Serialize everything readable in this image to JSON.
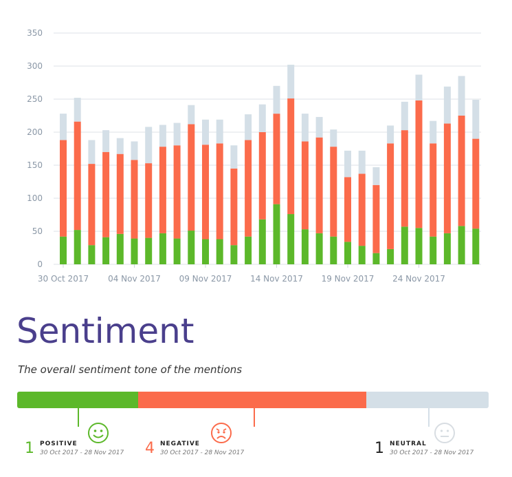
{
  "chart_data": {
    "type": "bar",
    "stacked": true,
    "ylim": [
      0,
      350
    ],
    "yticks": [
      0,
      50,
      100,
      150,
      200,
      250,
      300,
      350
    ],
    "grid": true,
    "xtick_labels": [
      "30 Oct 2017",
      "04 Nov 2017",
      "09 Nov 2017",
      "14 Nov 2017",
      "19 Nov 2017",
      "24 Nov 2017"
    ],
    "xtick_indices": [
      0,
      5,
      10,
      15,
      20,
      25
    ],
    "categories": [
      "30 Oct",
      "31 Oct",
      "01 Nov",
      "02 Nov",
      "03 Nov",
      "04 Nov",
      "05 Nov",
      "06 Nov",
      "07 Nov",
      "08 Nov",
      "09 Nov",
      "10 Nov",
      "11 Nov",
      "12 Nov",
      "13 Nov",
      "14 Nov",
      "15 Nov",
      "16 Nov",
      "17 Nov",
      "18 Nov",
      "19 Nov",
      "20 Nov",
      "21 Nov",
      "22 Nov",
      "23 Nov",
      "24 Nov",
      "25 Nov",
      "26 Nov",
      "27 Nov",
      "28 Nov"
    ],
    "series": [
      {
        "color": "#5cb82a",
        "values": [
          42,
          52,
          29,
          41,
          46,
          39,
          40,
          47,
          39,
          51,
          38,
          38,
          29,
          42,
          68,
          91,
          76,
          53,
          47,
          42,
          34,
          28,
          17,
          23,
          57,
          55,
          42,
          47,
          58,
          54
        ]
      },
      {
        "color": "#fb6b4b",
        "values": [
          146,
          164,
          123,
          129,
          121,
          119,
          113,
          131,
          141,
          161,
          143,
          145,
          116,
          146,
          132,
          137,
          175,
          133,
          145,
          136,
          98,
          109,
          103,
          160,
          146,
          193,
          141,
          166,
          167,
          136
        ]
      },
      {
        "color": "#d4dfe7",
        "values": [
          40,
          36,
          36,
          33,
          24,
          28,
          55,
          33,
          34,
          29,
          38,
          36,
          35,
          39,
          42,
          42,
          51,
          42,
          31,
          26,
          40,
          35,
          27,
          27,
          43,
          39,
          34,
          56,
          60,
          59
        ]
      }
    ]
  },
  "sentiment": {
    "title": "Sentiment",
    "subtitle": "The overall sentiment tone of the mentions",
    "shares": {
      "positive": 25.6,
      "negative": 48.5,
      "neutral": 25.9
    },
    "items": [
      {
        "count": "1",
        "label": "POSITIVE",
        "range": "30 Oct 2017 - 28 Nov 2017",
        "color": "#5cb82a",
        "icon": "smiley-happy-icon"
      },
      {
        "count": "4",
        "label": "NEGATIVE",
        "range": "30 Oct 2017 - 28 Nov 2017",
        "color": "#fb6b4b",
        "icon": "smiley-angry-icon"
      },
      {
        "count": "1",
        "label": "NEUTRAL",
        "range": "30 Oct 2017 - 28 Nov 2017",
        "color": "#222222",
        "icon": "smiley-neutral-icon"
      }
    ]
  }
}
